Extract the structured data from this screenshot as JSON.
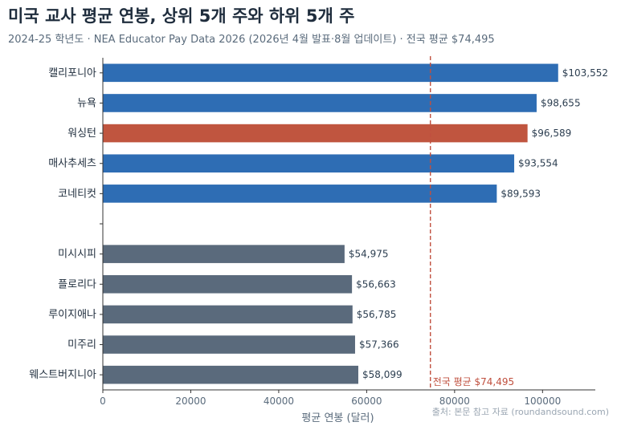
{
  "header": {
    "title": "미국 교사 평균 연봉, 상위 5개 주와 하위 5개 주",
    "subtitle": "2024-25 학년도 · NEA Educator Pay Data 2026 (2026년 4월 발표·8월 업데이트) · 전국 평균 $74,495",
    "source": "출처: 본문 참고 자료 (roundandsound.com)"
  },
  "colors": {
    "top": "#2e6db4",
    "highlight": "#c0553f",
    "bottom": "#5a6a7c",
    "reference": "#c0503f"
  },
  "chart_data": {
    "type": "bar",
    "orientation": "horizontal",
    "categories": [
      "캘리포니아",
      "뉴욕",
      "워싱턴",
      "매사추세츠",
      "코네티컷",
      "",
      "미시시피",
      "플로리다",
      "루이지애나",
      "미주리",
      "웨스트버지니아"
    ],
    "values": [
      103552,
      98655,
      96589,
      93554,
      89593,
      null,
      54975,
      56663,
      56785,
      57366,
      58099
    ],
    "value_labels": [
      "$103,552",
      "$98,655",
      "$96,589",
      "$93,554",
      "$89,593",
      "",
      "$54,975",
      "$56,663",
      "$56,785",
      "$57,366",
      "$58,099"
    ],
    "groups": [
      "top",
      "top",
      "highlight",
      "top",
      "top",
      "",
      "bottom",
      "bottom",
      "bottom",
      "bottom",
      "bottom"
    ],
    "xlabel": "평균 연봉 (달러)",
    "ylabel": "",
    "xlim": [
      0,
      112000
    ],
    "xticks": [
      "0",
      "20000",
      "40000",
      "60000",
      "80000",
      "100000"
    ],
    "reference_line": {
      "value": 74495,
      "label": "전국 평균 $74,495"
    },
    "grid": false
  }
}
